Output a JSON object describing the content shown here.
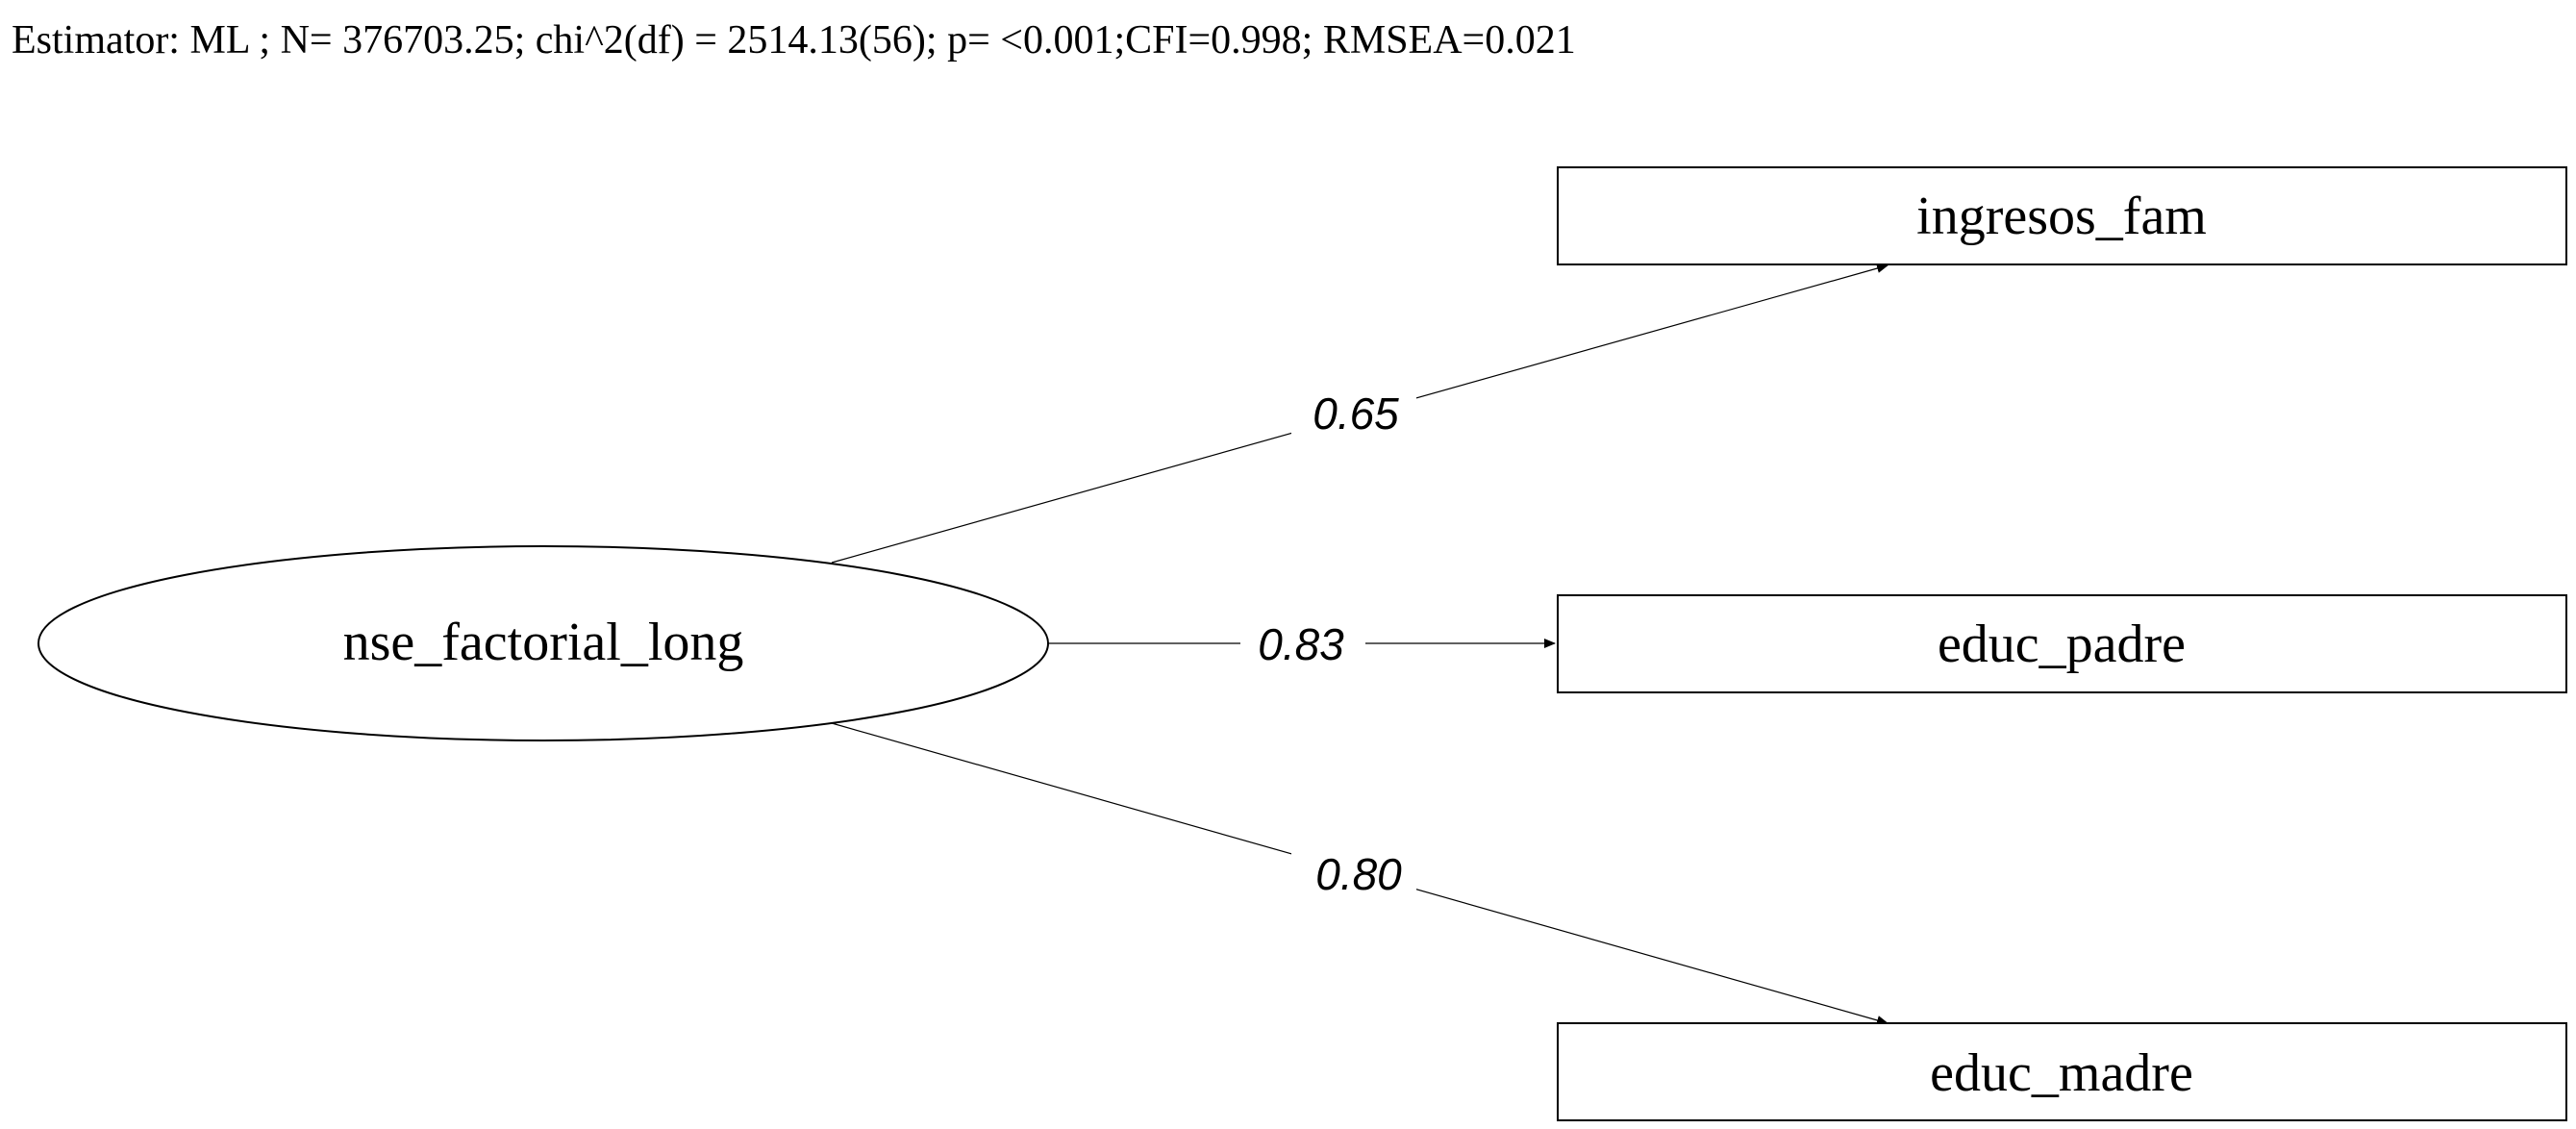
{
  "header": {
    "fit_summary": "Estimator: ML ; N=  376703.25; chi^2(df) = 2514.13(56); p= <0.001;CFI=0.998; RMSEA=0.021"
  },
  "diagram": {
    "latent": {
      "label": "nse_factorial_long"
    },
    "indicators": [
      {
        "label": "ingresos_fam"
      },
      {
        "label": "educ_padre"
      },
      {
        "label": "educ_madre"
      }
    ],
    "loadings": [
      {
        "from": "nse_factorial_long",
        "to": "ingresos_fam",
        "value": "0.65"
      },
      {
        "from": "nse_factorial_long",
        "to": "educ_padre",
        "value": "0.83"
      },
      {
        "from": "nse_factorial_long",
        "to": "educ_madre",
        "value": "0.80"
      }
    ],
    "colors": {
      "stroke": "#000000",
      "background": "#ffffff"
    }
  }
}
